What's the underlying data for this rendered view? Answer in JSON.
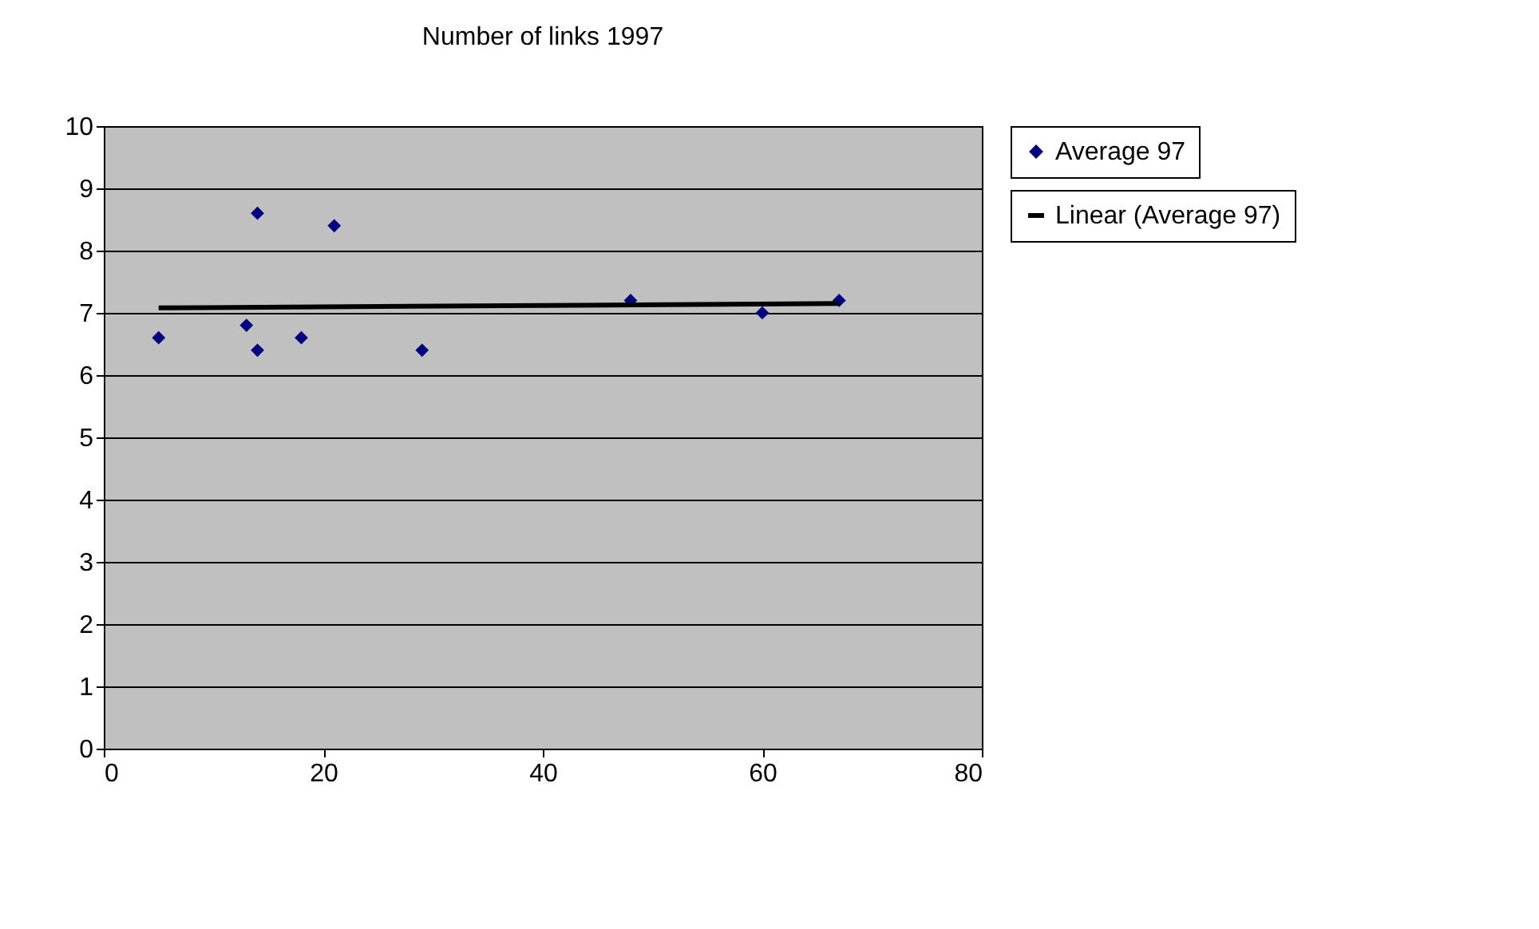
{
  "chart_data": {
    "type": "scatter",
    "title": "Number of links 1997",
    "xlim": [
      0,
      80
    ],
    "xticks": [
      0,
      20,
      40,
      60,
      80
    ],
    "ylim": [
      0,
      10
    ],
    "yticks": [
      0,
      1,
      2,
      3,
      4,
      5,
      6,
      7,
      8,
      9,
      10
    ],
    "grid": "y",
    "legend": "right",
    "marker": "diamond",
    "series": [
      {
        "name": "Average 97",
        "color": "#000080",
        "x": [
          5,
          13,
          14,
          14,
          18,
          21,
          29,
          48,
          60,
          67
        ],
        "values": [
          6.6,
          6.8,
          8.6,
          6.4,
          6.6,
          8.4,
          6.4,
          7.2,
          7.0,
          7.2
        ]
      },
      {
        "name": "Linear (Average 97)",
        "type": "line",
        "color": "#000000",
        "line_style": "solid",
        "marker": "none",
        "x": [
          5,
          67
        ],
        "values": [
          7.08,
          7.15
        ]
      }
    ]
  }
}
